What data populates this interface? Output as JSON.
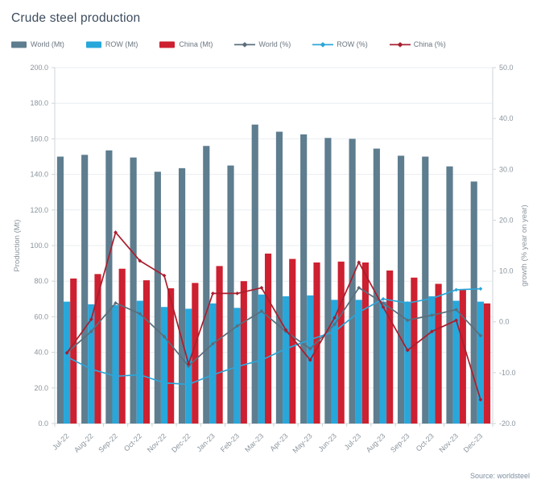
{
  "title": "Crude steel production",
  "source": "Source: worldsteel",
  "legend": {
    "items": [
      {
        "label": "World (Mt)",
        "type": "bar",
        "color": "#5e7d8f"
      },
      {
        "label": "ROW (Mt)",
        "type": "bar",
        "color": "#28a7db"
      },
      {
        "label": "China (Mt)",
        "type": "bar",
        "color": "#cd2030"
      },
      {
        "label": "World (%)",
        "type": "line",
        "color": "#5a6e7c"
      },
      {
        "label": "ROW (%)",
        "type": "line",
        "color": "#2ba6d9"
      },
      {
        "label": "China (%)",
        "type": "line",
        "color": "#a81e2e"
      }
    ]
  },
  "chart_data": {
    "type": "bar",
    "subtype": "combo bar + line, dual axis",
    "title": "Crude steel production",
    "grid": true,
    "legend_position": "top",
    "categories": [
      "Jul-22",
      "Aug-22",
      "Sep-22",
      "Oct-22",
      "Nov-22",
      "Dec-22",
      "Jan-23",
      "Feb-23",
      "Mar-23",
      "Apr-23",
      "May-23",
      "Jun-23",
      "Jul-23",
      "Aug-23",
      "Sep-23",
      "Oct-23",
      "Nov-23",
      "Dec-23"
    ],
    "bar_series": [
      {
        "name": "World (Mt)",
        "axis": "left",
        "color": "#5e7d8f",
        "values": [
          150,
          151,
          153.5,
          149.5,
          141.5,
          143.5,
          156,
          145,
          168,
          164,
          162.5,
          160.5,
          160,
          154.5,
          150.5,
          150,
          144.5,
          136
        ]
      },
      {
        "name": "ROW (Mt)",
        "axis": "left",
        "color": "#28a7db",
        "values": [
          68.5,
          67,
          66.5,
          69,
          65.5,
          64.5,
          67.5,
          65,
          72.5,
          71.5,
          72,
          69.5,
          69.5,
          68.5,
          68.5,
          71.5,
          69,
          68.5
        ]
      },
      {
        "name": "China (Mt)",
        "axis": "left",
        "color": "#cd2030",
        "values": [
          81.5,
          84,
          87,
          80.5,
          76,
          79,
          88.5,
          80,
          95.5,
          92.5,
          90.5,
          91,
          90.5,
          86,
          82,
          78.5,
          75.5,
          67.5
        ]
      }
    ],
    "line_series": [
      {
        "name": "World (%)",
        "axis": "right",
        "color": "#5a6e7c",
        "values": [
          -6.1,
          -1.9,
          3.7,
          1.6,
          -2.9,
          -8.7,
          -4.3,
          -0.8,
          2.1,
          -1.9,
          -5.3,
          -0.5,
          6.7,
          3.7,
          0.3,
          1.3,
          2.4,
          -2.7
        ]
      },
      {
        "name": "ROW (%)",
        "axis": "right",
        "color": "#2ba6d9",
        "values": [
          -6.9,
          -9.3,
          -10.7,
          -10.4,
          -12,
          -12.3,
          -10.4,
          -8.8,
          -7.5,
          -5.3,
          -3.5,
          -1.9,
          1.9,
          4.5,
          3.7,
          4.6,
          6.3,
          6.5
        ]
      },
      {
        "name": "China (%)",
        "axis": "right",
        "color": "#a81e2e",
        "values": [
          -6.1,
          0.5,
          17.6,
          12,
          9.1,
          -8.3,
          5.6,
          5.6,
          6.7,
          -1.6,
          -7.5,
          0.8,
          11.7,
          2.9,
          -5.6,
          -1.9,
          0.3,
          -15.3
        ]
      }
    ],
    "left_axis": {
      "title": "Production (Mt)",
      "min": 0,
      "max": 200,
      "step": 20,
      "tick_labels": [
        "0.0",
        "20.0",
        "40.0",
        "60.0",
        "80.0",
        "100.0",
        "120.0",
        "140.0",
        "160.0",
        "180.0",
        "200.0"
      ]
    },
    "right_axis": {
      "title": "growth (% year on year)",
      "min": -20,
      "max": 50,
      "step": 10,
      "tick_labels": [
        "-20.0",
        "-10.0",
        "0.0",
        "10.0",
        "20.0",
        "30.0",
        "40.0",
        "50.0"
      ]
    }
  },
  "colors": {
    "grid": "#e9edf0",
    "axis_line": "#cfd6da",
    "tick_text": "#8a949c",
    "title_text": "#3c4c5e",
    "legend_text": "#6b7680",
    "source_text": "#7d8ea0"
  }
}
